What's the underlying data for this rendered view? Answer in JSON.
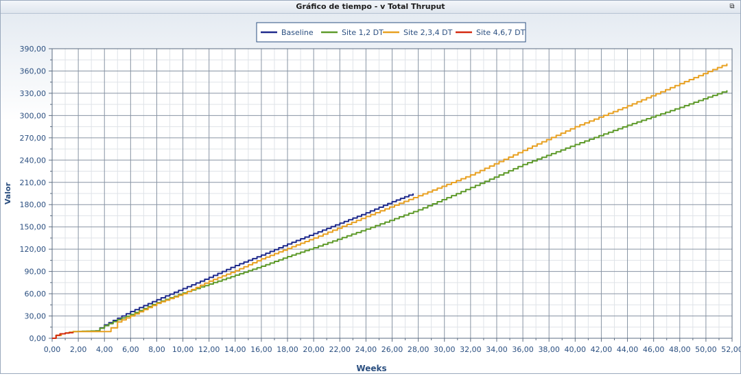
{
  "window": {
    "title": "Gráfico de tiempo - v Total Thruput",
    "restore_icon": "restore-icon"
  },
  "chart_data": {
    "type": "line",
    "title": "",
    "xlabel": "Weeks",
    "ylabel": "Valor",
    "xlim": [
      0,
      52
    ],
    "ylim": [
      0,
      390
    ],
    "xticks": [
      "0,00",
      "2,00",
      "4,00",
      "6,00",
      "8,00",
      "10,00",
      "12,00",
      "14,00",
      "16,00",
      "18,00",
      "20,00",
      "22,00",
      "24,00",
      "26,00",
      "28,00",
      "30,00",
      "32,00",
      "34,00",
      "36,00",
      "38,00",
      "40,00",
      "42,00",
      "44,00",
      "46,00",
      "48,00",
      "50,00",
      "52,00"
    ],
    "yticks": [
      "0,00",
      "30,00",
      "60,00",
      "90,00",
      "120,00",
      "150,00",
      "180,00",
      "210,00",
      "240,00",
      "270,00",
      "300,00",
      "330,00",
      "360,00",
      "390,00"
    ],
    "grid": true,
    "legend": "top-center",
    "series": [
      {
        "name": "Baseline",
        "color": "#1f2a8c",
        "x": [
          3.3,
          4.0,
          5.0,
          6.0,
          8.0,
          10.0,
          12.0,
          14.0,
          16.0,
          18.0,
          20.0,
          22.0,
          24.0,
          26.0,
          27.6
        ],
        "y": [
          10,
          18,
          27,
          36,
          52,
          67,
          82,
          98,
          112,
          127,
          141,
          155,
          169,
          184,
          195
        ]
      },
      {
        "name": "Site 1,2 DT",
        "color": "#5e9a2a",
        "x": [
          0,
          0.3,
          0.7,
          1.0,
          1.6,
          3.3,
          4.0,
          5.0,
          6.0,
          8.0,
          10.0,
          12.0,
          14.0,
          16.0,
          18.0,
          20.0,
          24.0,
          28.0,
          32.0,
          36.0,
          40.0,
          44.0,
          48.0,
          51.6
        ],
        "y": [
          0,
          4,
          6,
          7,
          9,
          10,
          17,
          25,
          32,
          48,
          61,
          73,
          85,
          97,
          110,
          122,
          147,
          173,
          203,
          234,
          261,
          287,
          311,
          334
        ]
      },
      {
        "name": "Site 2,3,4 DT",
        "color": "#e8a020",
        "x": [
          0,
          0.3,
          0.7,
          1.0,
          1.6,
          4.0,
          4.5,
          5.0,
          6.0,
          8.0,
          10.0,
          12.0,
          14.0,
          16.0,
          18.0,
          20.0,
          24.0,
          28.0,
          32.0,
          36.0,
          40.0,
          44.0,
          48.0,
          51.6
        ],
        "y": [
          0,
          4,
          6,
          7,
          9,
          9,
          14,
          22,
          30,
          47,
          60,
          77,
          91,
          107,
          121,
          135,
          164,
          192,
          220,
          253,
          285,
          313,
          343,
          370
        ]
      },
      {
        "name": "Site 4,6,7 DT",
        "color": "#d42a10",
        "x": [
          0,
          0.3,
          0.6,
          1.0,
          1.6
        ],
        "y": [
          0,
          4,
          6,
          7,
          8
        ]
      }
    ]
  }
}
